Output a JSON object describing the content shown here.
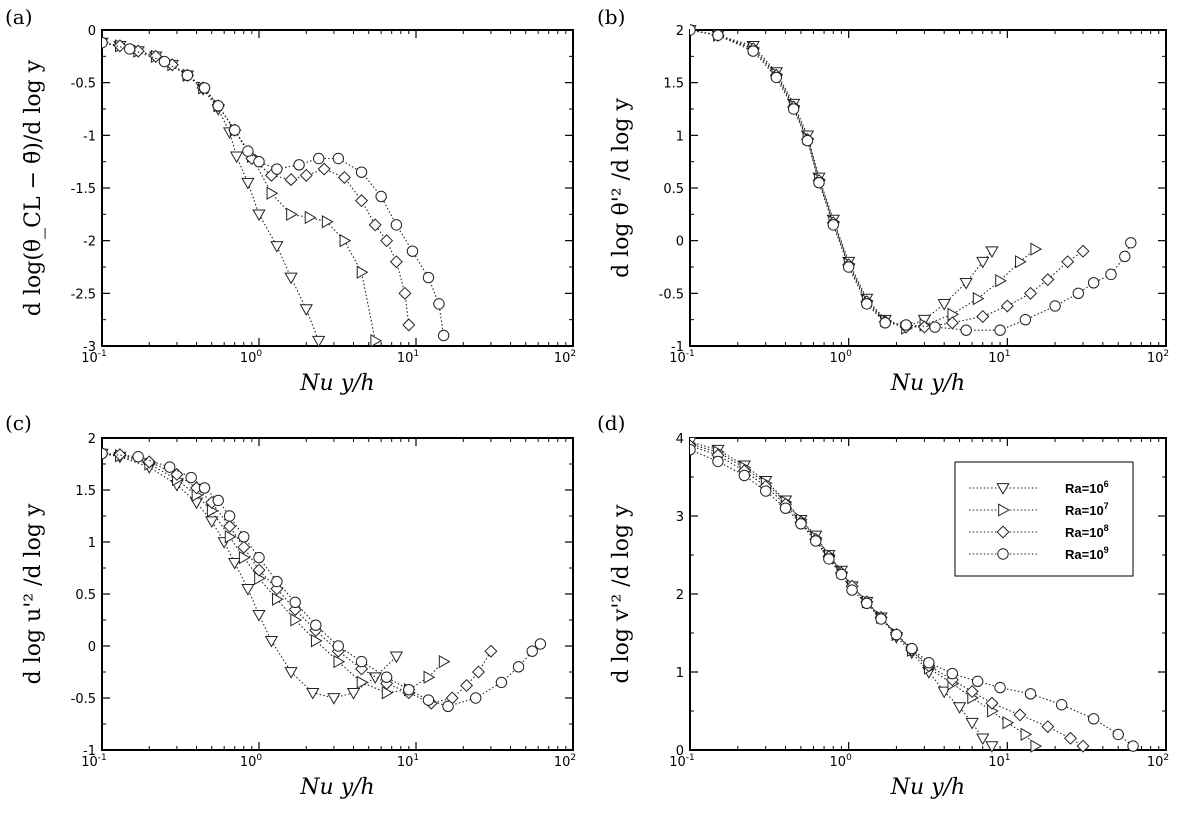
{
  "chart_data": [
    {
      "type": "line",
      "panel_label": "(a)",
      "xscale": "log",
      "xlim": [
        0.1,
        100
      ],
      "ylim": [
        -3,
        0
      ],
      "xticks": [
        0.1,
        1,
        10,
        100
      ],
      "xtick_labels": [
        [
          "10",
          "-1"
        ],
        [
          "10",
          "0"
        ],
        [
          "10",
          "1"
        ],
        [
          "10",
          "2"
        ]
      ],
      "yticks": [
        0,
        -0.5,
        -1,
        -1.5,
        -2,
        -2.5,
        -3
      ],
      "ytick_labels": [
        "0",
        "-0.5",
        "-1",
        "-1.5",
        "-2",
        "-2.5",
        "-3"
      ],
      "xlabel": "Nu y/h",
      "ylabel": "d log(θ_CL − θ̄)/d log y",
      "series": [
        {
          "name": "Ra=10^6",
          "marker": "triangle-down",
          "x": [
            0.1,
            0.13,
            0.17,
            0.22,
            0.28,
            0.35,
            0.44,
            0.55,
            0.65,
            0.72,
            0.85,
            1.0,
            1.3,
            1.6,
            2.0,
            2.4
          ],
          "y": [
            -0.12,
            -0.15,
            -0.2,
            -0.25,
            -0.33,
            -0.43,
            -0.56,
            -0.75,
            -0.97,
            -1.2,
            -1.45,
            -1.75,
            -2.05,
            -2.35,
            -2.65,
            -2.95
          ]
        },
        {
          "name": "Ra=10^7",
          "marker": "triangle-right",
          "x": [
            0.1,
            0.13,
            0.17,
            0.22,
            0.28,
            0.35,
            0.44,
            0.55,
            0.7,
            0.9,
            1.2,
            1.6,
            2.1,
            2.7,
            3.5,
            4.5,
            5.5
          ],
          "y": [
            -0.12,
            -0.15,
            -0.2,
            -0.25,
            -0.33,
            -0.43,
            -0.55,
            -0.72,
            -0.95,
            -1.2,
            -1.55,
            -1.75,
            -1.78,
            -1.82,
            -2.0,
            -2.3,
            -2.95
          ]
        },
        {
          "name": "Ra=10^8",
          "marker": "diamond",
          "x": [
            0.1,
            0.13,
            0.17,
            0.22,
            0.28,
            0.35,
            0.44,
            0.55,
            0.7,
            0.9,
            1.2,
            1.6,
            2.0,
            2.6,
            3.5,
            4.5,
            5.5,
            6.5,
            7.5,
            8.5,
            9.0
          ],
          "y": [
            -0.12,
            -0.15,
            -0.2,
            -0.25,
            -0.33,
            -0.43,
            -0.55,
            -0.72,
            -0.95,
            -1.22,
            -1.38,
            -1.42,
            -1.38,
            -1.32,
            -1.4,
            -1.62,
            -1.85,
            -2.0,
            -2.2,
            -2.5,
            -2.8
          ]
        },
        {
          "name": "Ra=10^9",
          "marker": "circle",
          "x": [
            0.1,
            0.15,
            0.25,
            0.35,
            0.45,
            0.55,
            0.7,
            0.85,
            1.0,
            1.3,
            1.8,
            2.4,
            3.2,
            4.5,
            6.0,
            7.5,
            9.5,
            12.0,
            14.0,
            15.0
          ],
          "y": [
            -0.12,
            -0.18,
            -0.3,
            -0.43,
            -0.55,
            -0.72,
            -0.95,
            -1.15,
            -1.25,
            -1.32,
            -1.28,
            -1.22,
            -1.22,
            -1.35,
            -1.58,
            -1.85,
            -2.1,
            -2.35,
            -2.6,
            -2.9
          ]
        }
      ]
    },
    {
      "type": "line",
      "panel_label": "(b)",
      "xscale": "log",
      "xlim": [
        0.1,
        100
      ],
      "ylim": [
        -1,
        2
      ],
      "xticks": [
        0.1,
        1,
        10,
        100
      ],
      "xtick_labels": [
        [
          "10",
          "-1"
        ],
        [
          "10",
          "0"
        ],
        [
          "10",
          "1"
        ],
        [
          "10",
          "2"
        ]
      ],
      "yticks": [
        2,
        1.5,
        1,
        0.5,
        0,
        -0.5,
        -1
      ],
      "ytick_labels": [
        "2",
        "1.5",
        "1",
        "0.5",
        "0",
        "-0.5",
        "-1"
      ],
      "xlabel": "Nu y/h",
      "ylabel": "d log θ'² /d log y",
      "series": [
        {
          "name": "Ra=10^6",
          "marker": "triangle-down",
          "x": [
            0.1,
            0.15,
            0.25,
            0.35,
            0.45,
            0.55,
            0.65,
            0.8,
            1.0,
            1.3,
            1.7,
            2.3,
            3.0,
            4.0,
            5.5,
            7.0,
            8.0
          ],
          "y": [
            2.0,
            1.95,
            1.85,
            1.6,
            1.3,
            1.0,
            0.6,
            0.2,
            -0.2,
            -0.55,
            -0.75,
            -0.82,
            -0.75,
            -0.6,
            -0.4,
            -0.2,
            -0.1
          ]
        },
        {
          "name": "Ra=10^7",
          "marker": "triangle-right",
          "x": [
            0.1,
            0.15,
            0.25,
            0.35,
            0.45,
            0.55,
            0.65,
            0.8,
            1.0,
            1.3,
            1.7,
            2.3,
            3.0,
            4.5,
            6.5,
            9.0,
            12.0,
            15.0
          ],
          "y": [
            2.0,
            1.95,
            1.83,
            1.58,
            1.28,
            0.97,
            0.58,
            0.18,
            -0.22,
            -0.57,
            -0.76,
            -0.83,
            -0.8,
            -0.7,
            -0.55,
            -0.38,
            -0.2,
            -0.08
          ]
        },
        {
          "name": "Ra=10^8",
          "marker": "diamond",
          "x": [
            0.1,
            0.15,
            0.25,
            0.35,
            0.45,
            0.55,
            0.65,
            0.8,
            1.0,
            1.3,
            1.7,
            2.3,
            3.0,
            4.5,
            7.0,
            10.0,
            14.0,
            18.0,
            24.0,
            30.0
          ],
          "y": [
            2.0,
            1.95,
            1.82,
            1.57,
            1.27,
            0.96,
            0.57,
            0.17,
            -0.23,
            -0.58,
            -0.77,
            -0.82,
            -0.82,
            -0.78,
            -0.72,
            -0.62,
            -0.5,
            -0.37,
            -0.2,
            -0.1
          ]
        },
        {
          "name": "Ra=10^9",
          "marker": "circle",
          "x": [
            0.1,
            0.15,
            0.25,
            0.35,
            0.45,
            0.55,
            0.65,
            0.8,
            1.0,
            1.3,
            1.7,
            2.3,
            3.5,
            5.5,
            9.0,
            13.0,
            20.0,
            28.0,
            35.0,
            45.0,
            55.0,
            60.0
          ],
          "y": [
            2.0,
            1.95,
            1.8,
            1.55,
            1.25,
            0.95,
            0.55,
            0.15,
            -0.25,
            -0.6,
            -0.78,
            -0.8,
            -0.82,
            -0.85,
            -0.85,
            -0.75,
            -0.62,
            -0.5,
            -0.4,
            -0.32,
            -0.15,
            -0.02
          ]
        }
      ]
    },
    {
      "type": "line",
      "panel_label": "(c)",
      "xscale": "log",
      "xlim": [
        0.1,
        100
      ],
      "ylim": [
        -1,
        2
      ],
      "xticks": [
        0.1,
        1,
        10,
        100
      ],
      "xtick_labels": [
        [
          "10",
          "-1"
        ],
        [
          "10",
          "0"
        ],
        [
          "10",
          "1"
        ],
        [
          "10",
          "2"
        ]
      ],
      "yticks": [
        2,
        1.5,
        1,
        0.5,
        0,
        -0.5,
        -1
      ],
      "ytick_labels": [
        "2",
        "1.5",
        "1",
        "0.5",
        "0",
        "-0.5",
        "-1"
      ],
      "xlabel": "Nu y/h",
      "ylabel": "d log u'² /d log y",
      "series": [
        {
          "name": "Ra=10^6",
          "marker": "triangle-down",
          "x": [
            0.1,
            0.13,
            0.2,
            0.3,
            0.4,
            0.5,
            0.6,
            0.7,
            0.85,
            1.0,
            1.2,
            1.6,
            2.2,
            3.0,
            4.0,
            5.5,
            7.5
          ],
          "y": [
            1.85,
            1.82,
            1.72,
            1.55,
            1.38,
            1.2,
            1.0,
            0.8,
            0.55,
            0.3,
            0.05,
            -0.25,
            -0.45,
            -0.5,
            -0.45,
            -0.3,
            -0.1
          ]
        },
        {
          "name": "Ra=10^7",
          "marker": "triangle-right",
          "x": [
            0.1,
            0.13,
            0.2,
            0.3,
            0.4,
            0.5,
            0.65,
            0.8,
            1.0,
            1.3,
            1.7,
            2.3,
            3.2,
            4.5,
            6.5,
            9.0,
            12.0,
            15.0
          ],
          "y": [
            1.85,
            1.83,
            1.75,
            1.6,
            1.45,
            1.3,
            1.05,
            0.85,
            0.65,
            0.45,
            0.25,
            0.05,
            -0.15,
            -0.35,
            -0.45,
            -0.42,
            -0.3,
            -0.15
          ]
        },
        {
          "name": "Ra=10^8",
          "marker": "diamond",
          "x": [
            0.1,
            0.13,
            0.2,
            0.3,
            0.4,
            0.5,
            0.65,
            0.8,
            1.0,
            1.3,
            1.7,
            2.3,
            3.2,
            4.5,
            6.5,
            9.0,
            12.5,
            17.0,
            21.0,
            25.0,
            30.0
          ],
          "y": [
            1.85,
            1.84,
            1.77,
            1.65,
            1.52,
            1.38,
            1.15,
            0.95,
            0.73,
            0.55,
            0.35,
            0.15,
            -0.05,
            -0.22,
            -0.36,
            -0.45,
            -0.55,
            -0.5,
            -0.38,
            -0.25,
            -0.05
          ]
        },
        {
          "name": "Ra=10^9",
          "marker": "circle",
          "x": [
            0.1,
            0.17,
            0.27,
            0.37,
            0.45,
            0.55,
            0.65,
            0.8,
            1.0,
            1.3,
            1.7,
            2.3,
            3.2,
            4.5,
            6.5,
            9.0,
            12.0,
            16.0,
            24.0,
            35.0,
            45.0,
            55.0,
            62.0
          ],
          "y": [
            1.85,
            1.82,
            1.72,
            1.62,
            1.52,
            1.4,
            1.25,
            1.05,
            0.85,
            0.62,
            0.42,
            0.2,
            0.0,
            -0.15,
            -0.3,
            -0.42,
            -0.52,
            -0.58,
            -0.5,
            -0.35,
            -0.2,
            -0.05,
            0.02
          ]
        }
      ]
    },
    {
      "type": "line",
      "panel_label": "(d)",
      "xscale": "log",
      "xlim": [
        0.1,
        100
      ],
      "ylim": [
        0,
        4
      ],
      "xticks": [
        0.1,
        1,
        10,
        100
      ],
      "xtick_labels": [
        [
          "10",
          "-1"
        ],
        [
          "10",
          "0"
        ],
        [
          "10",
          "1"
        ],
        [
          "10",
          "2"
        ]
      ],
      "yticks": [
        4,
        3,
        2,
        1,
        0
      ],
      "ytick_labels": [
        "4",
        "3",
        "2",
        "1",
        "0"
      ],
      "xlabel": "Nu y/h",
      "ylabel": "d log v'² /d log y",
      "legend": {
        "position": "top-right",
        "entries": [
          [
            "Ra=10",
            "6"
          ],
          [
            "Ra=10",
            "7"
          ],
          [
            "Ra=10",
            "8"
          ],
          [
            "Ra=10",
            "9"
          ]
        ]
      },
      "series": [
        {
          "name": "Ra=10^6",
          "marker": "triangle-down",
          "x": [
            0.1,
            0.15,
            0.22,
            0.3,
            0.4,
            0.5,
            0.62,
            0.75,
            0.9,
            1.05,
            1.3,
            1.6,
            2.0,
            2.5,
            3.2,
            4.0,
            5.0,
            6.0,
            7.0,
            8.0
          ],
          "y": [
            3.95,
            3.85,
            3.65,
            3.45,
            3.2,
            2.95,
            2.75,
            2.5,
            2.3,
            2.1,
            1.9,
            1.7,
            1.45,
            1.25,
            1.0,
            0.75,
            0.55,
            0.35,
            0.15,
            0.05
          ]
        },
        {
          "name": "Ra=10^7",
          "marker": "triangle-right",
          "x": [
            0.1,
            0.15,
            0.22,
            0.3,
            0.4,
            0.5,
            0.62,
            0.75,
            0.9,
            1.05,
            1.3,
            1.6,
            2.0,
            2.5,
            3.2,
            4.5,
            6.0,
            8.0,
            10.0,
            13.0,
            15.0
          ],
          "y": [
            3.92,
            3.82,
            3.62,
            3.42,
            3.18,
            2.95,
            2.72,
            2.5,
            2.28,
            2.1,
            1.9,
            1.7,
            1.48,
            1.28,
            1.05,
            0.85,
            0.67,
            0.5,
            0.35,
            0.2,
            0.05
          ]
        },
        {
          "name": "Ra=10^8",
          "marker": "diamond",
          "x": [
            0.1,
            0.15,
            0.22,
            0.3,
            0.4,
            0.5,
            0.62,
            0.75,
            0.9,
            1.05,
            1.3,
            1.6,
            2.0,
            2.5,
            3.2,
            4.5,
            6.0,
            8.0,
            12.0,
            18.0,
            25.0,
            30.0
          ],
          "y": [
            3.9,
            3.78,
            3.58,
            3.38,
            3.15,
            2.92,
            2.7,
            2.48,
            2.27,
            2.1,
            1.9,
            1.7,
            1.48,
            1.28,
            1.08,
            0.9,
            0.75,
            0.6,
            0.45,
            0.3,
            0.15,
            0.05
          ]
        },
        {
          "name": "Ra=10^9",
          "marker": "circle",
          "x": [
            0.1,
            0.15,
            0.22,
            0.3,
            0.4,
            0.5,
            0.62,
            0.75,
            0.9,
            1.05,
            1.3,
            1.6,
            2.0,
            2.5,
            3.2,
            4.5,
            6.5,
            9.0,
            14.0,
            22.0,
            35.0,
            50.0,
            62.0
          ],
          "y": [
            3.85,
            3.7,
            3.52,
            3.32,
            3.1,
            2.9,
            2.68,
            2.45,
            2.25,
            2.05,
            1.88,
            1.68,
            1.48,
            1.3,
            1.12,
            0.98,
            0.88,
            0.8,
            0.72,
            0.58,
            0.4,
            0.2,
            0.05
          ]
        }
      ]
    }
  ]
}
